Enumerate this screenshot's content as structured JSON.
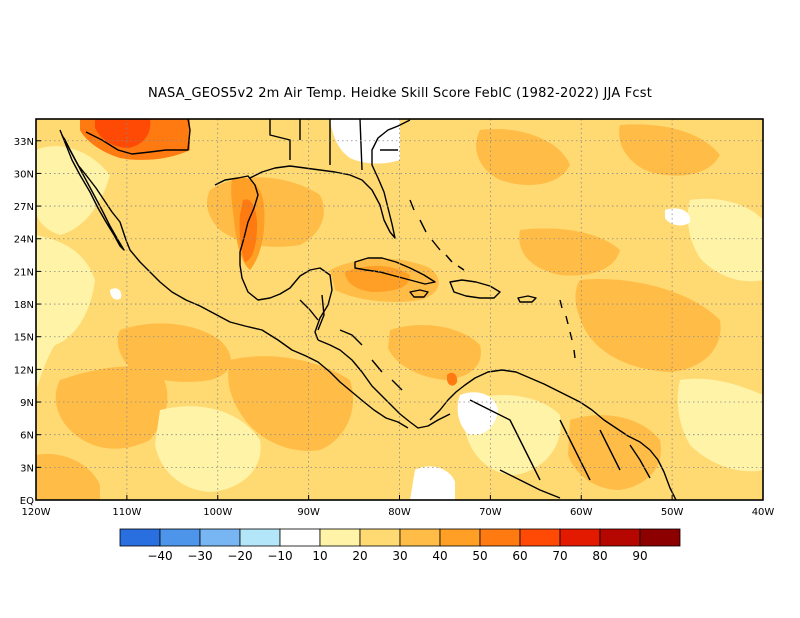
{
  "title": "NASA_GEOS5v2  2m Air Temp. Heidke Skill Score FebIC (1982-2022) JJA Fcst",
  "map": {
    "lon_labels": [
      "120W",
      "110W",
      "100W",
      "90W",
      "80W",
      "70W",
      "60W",
      "50W",
      "40W"
    ],
    "lat_labels": [
      "EQ",
      "3N",
      "6N",
      "9N",
      "12N",
      "15N",
      "18N",
      "21N",
      "24N",
      "27N",
      "30N",
      "33N"
    ],
    "lon_range": [
      -120,
      -40
    ],
    "lat_range": [
      0,
      35
    ],
    "grid": true
  },
  "colorbar": {
    "labels": [
      "-40",
      "-30",
      "-20",
      "-10",
      "10",
      "20",
      "30",
      "40",
      "50",
      "60",
      "70",
      "80",
      "90"
    ],
    "colors": [
      "#2a6fe0",
      "#4d95ea",
      "#78b6f3",
      "#b4e6fa",
      "#ffffff",
      "#fff3a8",
      "#ffda72",
      "#ffbd48",
      "#ff9f26",
      "#ff7a10",
      "#ff4a05",
      "#e41a00",
      "#b50600",
      "#8c0000"
    ]
  }
}
